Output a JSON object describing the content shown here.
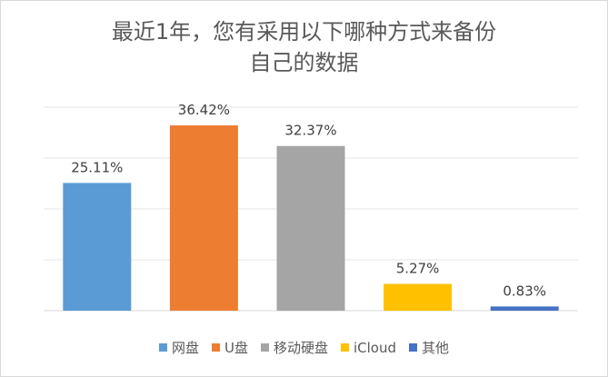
{
  "chart_data": {
    "type": "bar",
    "title_line1": "最近1年，您有采用以下哪种方式来备份",
    "title_line2": "自己的数据",
    "categories": [
      "网盘",
      "U盘",
      "移动硬盘",
      "iCloud",
      "其他"
    ],
    "values": [
      25.11,
      36.42,
      32.37,
      5.27,
      0.83
    ],
    "data_labels": [
      "25.11%",
      "36.42%",
      "32.37%",
      "5.27%",
      "0.83%"
    ],
    "colors": [
      "#5b9bd5",
      "#ed7d31",
      "#a5a5a5",
      "#ffc000",
      "#4472c4"
    ],
    "ylim": [
      0,
      40
    ],
    "grid": true,
    "legend_position": "bottom"
  }
}
